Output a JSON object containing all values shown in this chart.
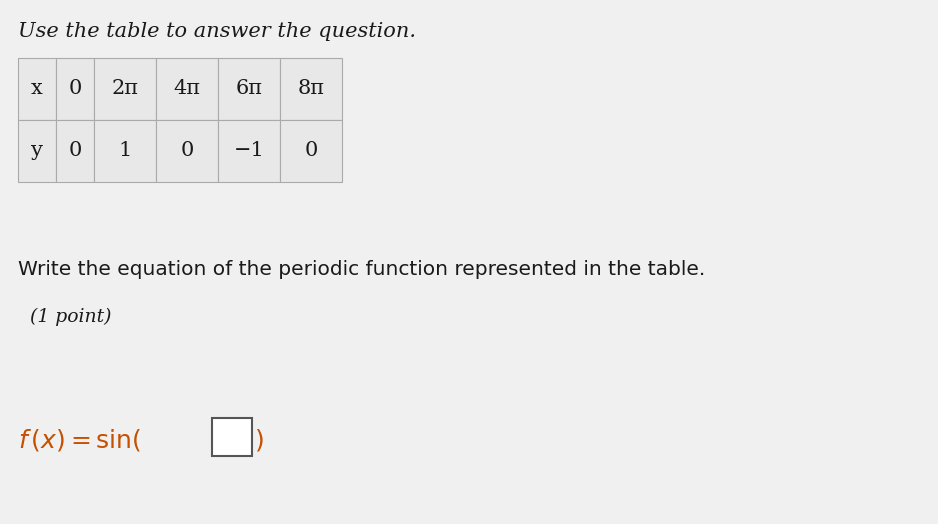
{
  "background_color": "#f0f0f0",
  "title_text": "Use the table to answer the question.",
  "title_fontsize": 15,
  "table_x_labels": [
    "x",
    "0",
    "2π",
    "4π",
    "6π",
    "8π"
  ],
  "table_y_labels": [
    "y",
    "0",
    "1",
    "0",
    "−1",
    "0"
  ],
  "body_text": "Write the equation of the periodic function represented in the table.",
  "body_fontsize": 14.5,
  "point_text": "(1 point)",
  "point_fontsize": 13.5,
  "equation_fontsize": 18,
  "box_color": "#ffffff",
  "box_border_color": "#555555",
  "text_color": "#1a1a1a",
  "orange_color": "#c45000",
  "table_border_color": "#aaaaaa",
  "table_fill_color": "#e8e8e8"
}
